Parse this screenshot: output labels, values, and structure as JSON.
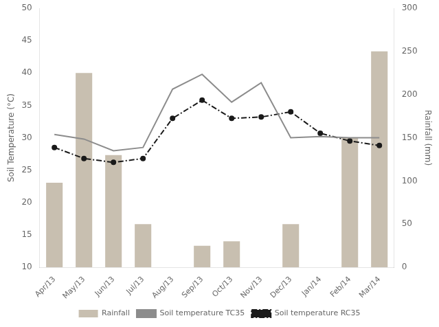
{
  "chart_data": {
    "type": "line",
    "ylabel": "Soil Temperature (°C)",
    "y2label": "Rainfall (mm)",
    "categories": [
      "Apr/13",
      "May/13",
      "Jun/13",
      "Jul/13",
      "Aug/13",
      "Sep/13",
      "Oct/13",
      "Nov/13",
      "Dec/13",
      "Jan/14",
      "Feb/14",
      "Mar/14"
    ],
    "series": [
      {
        "name": "Rainfall",
        "type": "bar",
        "axis": "y2",
        "color": "#c8bfb0",
        "values": [
          98,
          225,
          130,
          50,
          0,
          25,
          30,
          0,
          50,
          0,
          150,
          250
        ]
      },
      {
        "name": "Soil temperature TC35",
        "type": "line",
        "color": "#8c8c8c",
        "line_style": "solid",
        "marker": "none",
        "values": [
          30.5,
          29.8,
          28.0,
          28.5,
          37.5,
          39.8,
          35.5,
          38.5,
          30.0,
          30.2,
          30.0,
          30.0
        ]
      },
      {
        "name": "Soil temperature RC35",
        "type": "line",
        "color": "#1a1a1a",
        "line_style": "dashdot",
        "marker": "point",
        "values": [
          28.5,
          26.8,
          26.2,
          26.8,
          33.0,
          35.8,
          33.0,
          33.2,
          34.0,
          30.7,
          29.5,
          28.8
        ]
      }
    ],
    "ylim": [
      10,
      50
    ],
    "yticks": [
      10,
      15,
      20,
      25,
      30,
      35,
      40,
      45,
      50
    ],
    "y2lim": [
      0,
      300
    ],
    "y2ticks": [
      0,
      50,
      100,
      150,
      200,
      250,
      300
    ],
    "grid": false,
    "legend": "bottom"
  }
}
